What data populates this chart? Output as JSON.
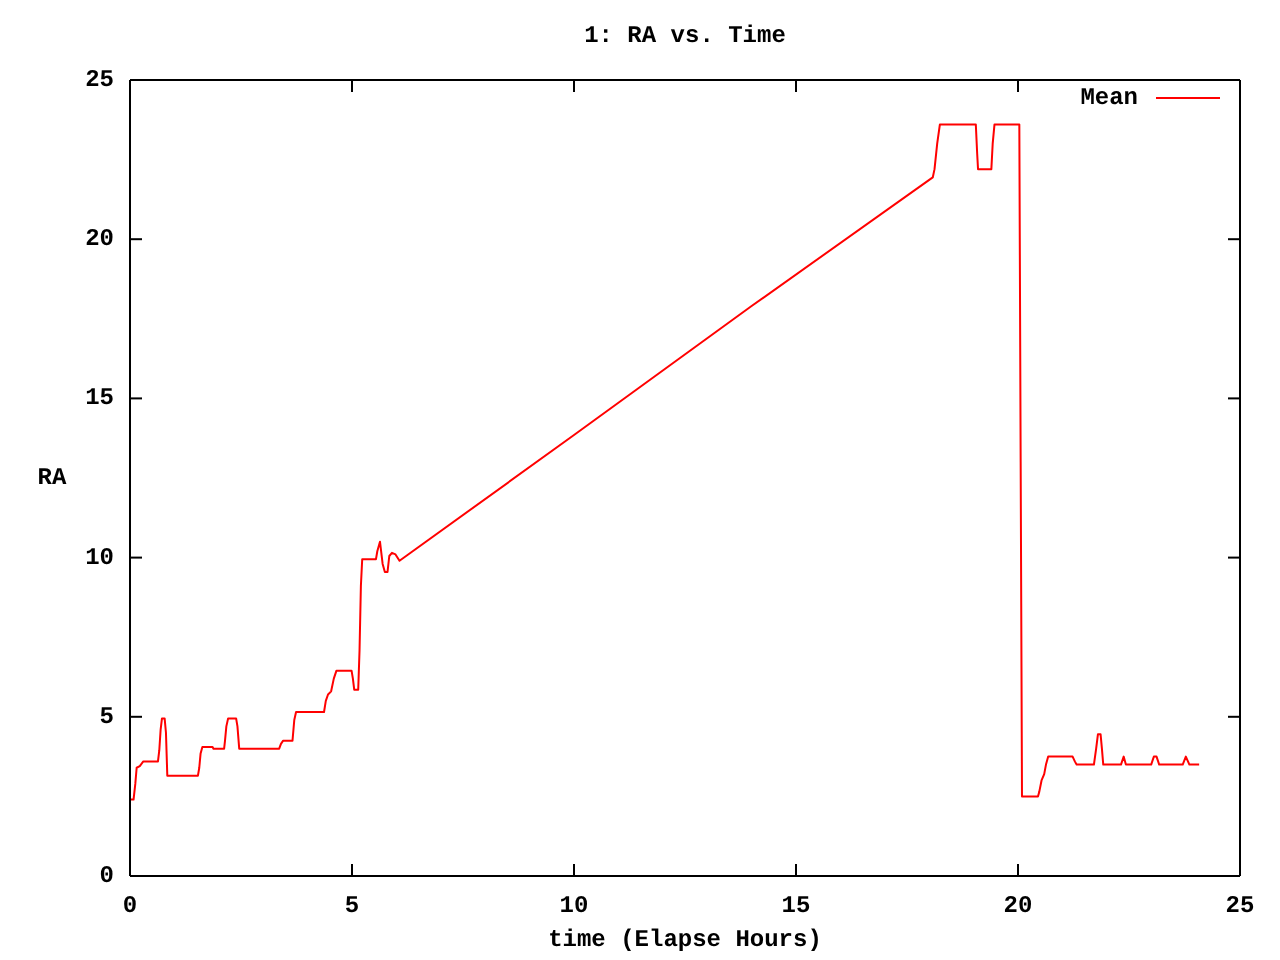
{
  "chart_data": {
    "type": "line",
    "title": "1: RA vs. Time",
    "xlabel": "time (Elapse Hours)",
    "ylabel": "RA",
    "x": [
      0,
      0.08,
      0.12,
      0.15,
      0.22,
      0.3,
      0.63,
      0.66,
      0.69,
      0.72,
      0.78,
      0.81,
      0.84,
      1.53,
      1.56,
      1.59,
      1.63,
      1.86,
      1.88,
      2.12,
      2.14,
      2.17,
      2.21,
      2.39,
      2.42,
      2.46,
      3.36,
      3.4,
      3.45,
      3.66,
      3.7,
      3.74,
      4.37,
      4.41,
      4.46,
      4.53,
      4.59,
      4.65,
      4.99,
      5.02,
      5.05,
      5.14,
      5.17,
      5.2,
      5.23,
      5.54,
      5.57,
      5.63,
      5.69,
      5.74,
      5.8,
      5.84,
      5.9,
      5.98,
      6.07,
      10,
      14,
      18.08,
      18.12,
      18.18,
      18.24,
      18.33,
      19.05,
      19.08,
      19.1,
      19.4,
      19.43,
      19.47,
      20.03,
      20.06,
      20.09,
      20.45,
      20.48,
      20.53,
      20.59,
      20.63,
      20.68,
      21.23,
      21.28,
      21.32,
      21.71,
      21.76,
      21.8,
      21.86,
      21.89,
      21.92,
      22.32,
      22.38,
      22.43,
      23,
      23.06,
      23.12,
      23.18,
      23.71,
      23.78,
      23.86,
      24.08
    ],
    "series": [
      {
        "name": "Mean",
        "color": "#ff0000",
        "values": [
          2.4,
          2.4,
          2.9,
          3.4,
          3.45,
          3.6,
          3.6,
          3.95,
          4.6,
          4.95,
          4.95,
          4.5,
          3.15,
          3.15,
          3.4,
          3.85,
          4.05,
          4.05,
          4.0,
          4.0,
          4.25,
          4.7,
          4.95,
          4.95,
          4.7,
          4.0,
          4.0,
          4.15,
          4.25,
          4.25,
          4.9,
          5.15,
          5.15,
          5.5,
          5.7,
          5.8,
          6.2,
          6.45,
          6.45,
          6.2,
          5.85,
          5.85,
          7.1,
          9.1,
          9.95,
          9.95,
          10.2,
          10.5,
          9.8,
          9.55,
          9.55,
          10.05,
          10.15,
          10.1,
          9.9,
          13.85,
          17.9,
          21.94,
          22.2,
          23.0,
          23.6,
          23.6,
          23.6,
          22.7,
          22.2,
          22.2,
          23.0,
          23.6,
          23.6,
          13.0,
          2.5,
          2.5,
          2.65,
          3.0,
          3.2,
          3.5,
          3.75,
          3.75,
          3.6,
          3.5,
          3.5,
          4.0,
          4.45,
          4.45,
          4.0,
          3.5,
          3.5,
          3.75,
          3.5,
          3.5,
          3.75,
          3.75,
          3.5,
          3.5,
          3.75,
          3.5,
          3.5
        ]
      }
    ],
    "xlim": [
      0,
      25
    ],
    "ylim": [
      0,
      25
    ],
    "xticks": [
      0,
      5,
      10,
      15,
      20,
      25
    ],
    "yticks": [
      0,
      5,
      10,
      15,
      20,
      25
    ],
    "grid": false,
    "legend": "top right",
    "marker": "none",
    "line_style": "solid"
  }
}
